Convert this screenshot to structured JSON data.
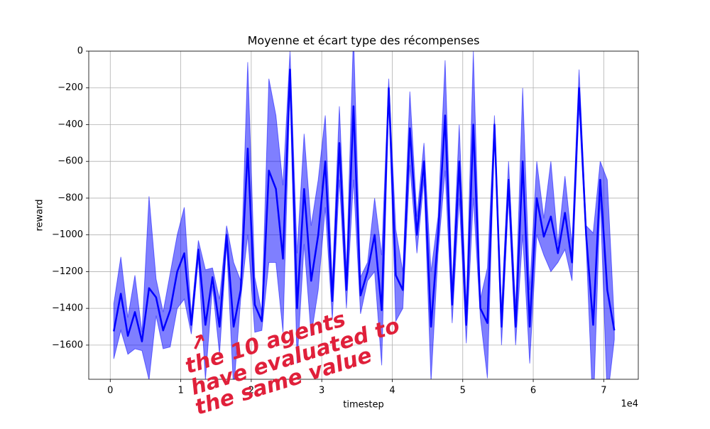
{
  "chart_data": {
    "type": "line",
    "title": "Moyenne et écart type des récompenses",
    "xlabel": "timestep",
    "ylabel": "reward",
    "x_offset_label": "1e4",
    "annotation": [
      "↗",
      "the 10 agents",
      "have evaluated to",
      "the same value"
    ],
    "color": "#0000ff",
    "band_color": "#0000ff",
    "grid": true,
    "xlim": [
      -3050,
      74900
    ],
    "ylim": [
      -1786,
      0
    ],
    "xticks": [
      {
        "value": 0,
        "label": "0"
      },
      {
        "value": 10000,
        "label": "1"
      },
      {
        "value": 20000,
        "label": "2"
      },
      {
        "value": 30000,
        "label": "3"
      },
      {
        "value": 40000,
        "label": "4"
      },
      {
        "value": 50000,
        "label": "5"
      },
      {
        "value": 60000,
        "label": "6"
      },
      {
        "value": 70000,
        "label": "7"
      }
    ],
    "yticks": [
      0,
      {
        "value": -200,
        "label": "−200"
      },
      {
        "value": -400,
        "label": "−400"
      },
      {
        "value": -600,
        "label": "−600"
      },
      {
        "value": -800,
        "label": "−800"
      },
      {
        "value": -1000,
        "label": "−1000"
      },
      {
        "value": -1200,
        "label": "−1200"
      },
      {
        "value": -1400,
        "label": "−1400"
      },
      {
        "value": -1600,
        "label": "−1600"
      }
    ],
    "x": [
      500,
      1500,
      2500,
      3500,
      4500,
      5500,
      6500,
      7500,
      8500,
      9500,
      10500,
      11500,
      12500,
      13500,
      14500,
      15500,
      16500,
      17500,
      18500,
      19500,
      20500,
      21500,
      22500,
      23500,
      24500,
      25500,
      26500,
      27500,
      28500,
      29500,
      30500,
      31500,
      32500,
      33500,
      34500,
      35500,
      36500,
      37500,
      38500,
      39500,
      40500,
      41500,
      42500,
      43500,
      44500,
      45500,
      46500,
      47500,
      48500,
      49500,
      50500,
      51500,
      52500,
      53500,
      54500,
      55500,
      56500,
      57500,
      58500,
      59500,
      60500,
      61500,
      62500,
      63500,
      64500,
      65500,
      66500,
      67500,
      68500,
      69500,
      70500,
      71500
    ],
    "values": [
      -1525,
      -1320,
      -1550,
      -1420,
      -1580,
      -1290,
      -1340,
      -1520,
      -1410,
      -1200,
      -1100,
      -1490,
      -1080,
      -1490,
      -1230,
      -1500,
      -1000,
      -1500,
      -1300,
      -530,
      -1380,
      -1470,
      -650,
      -750,
      -1130,
      -100,
      -1400,
      -750,
      -1250,
      -1000,
      -600,
      -1360,
      -500,
      -1300,
      -300,
      -1330,
      -1200,
      -1000,
      -1410,
      -200,
      -1220,
      -1300,
      -420,
      -1000,
      -600,
      -1500,
      -1000,
      -350,
      -1380,
      -600,
      -1490,
      -400,
      -1400,
      -1480,
      -400,
      -1500,
      -700,
      -1500,
      -600,
      -1500,
      -800,
      -1010,
      -900,
      -1100,
      -880,
      -1150,
      -200,
      -1000,
      -1490,
      -700,
      -1300,
      -1520
    ],
    "std": [
      150,
      200,
      100,
      200,
      50,
      500,
      100,
      100,
      200,
      200,
      250,
      50,
      50,
      300,
      50,
      150,
      50,
      350,
      50,
      470,
      150,
      50,
      500,
      400,
      400,
      100,
      300,
      300,
      300,
      300,
      250,
      100,
      200,
      100,
      400,
      100,
      50,
      200,
      300,
      50,
      250,
      100,
      200,
      100,
      100,
      300,
      100,
      300,
      100,
      200,
      100,
      400,
      50,
      300,
      50,
      100,
      100,
      100,
      400,
      200,
      200,
      100,
      300,
      50,
      200,
      100,
      100,
      50,
      500,
      100,
      600,
      50
    ]
  }
}
